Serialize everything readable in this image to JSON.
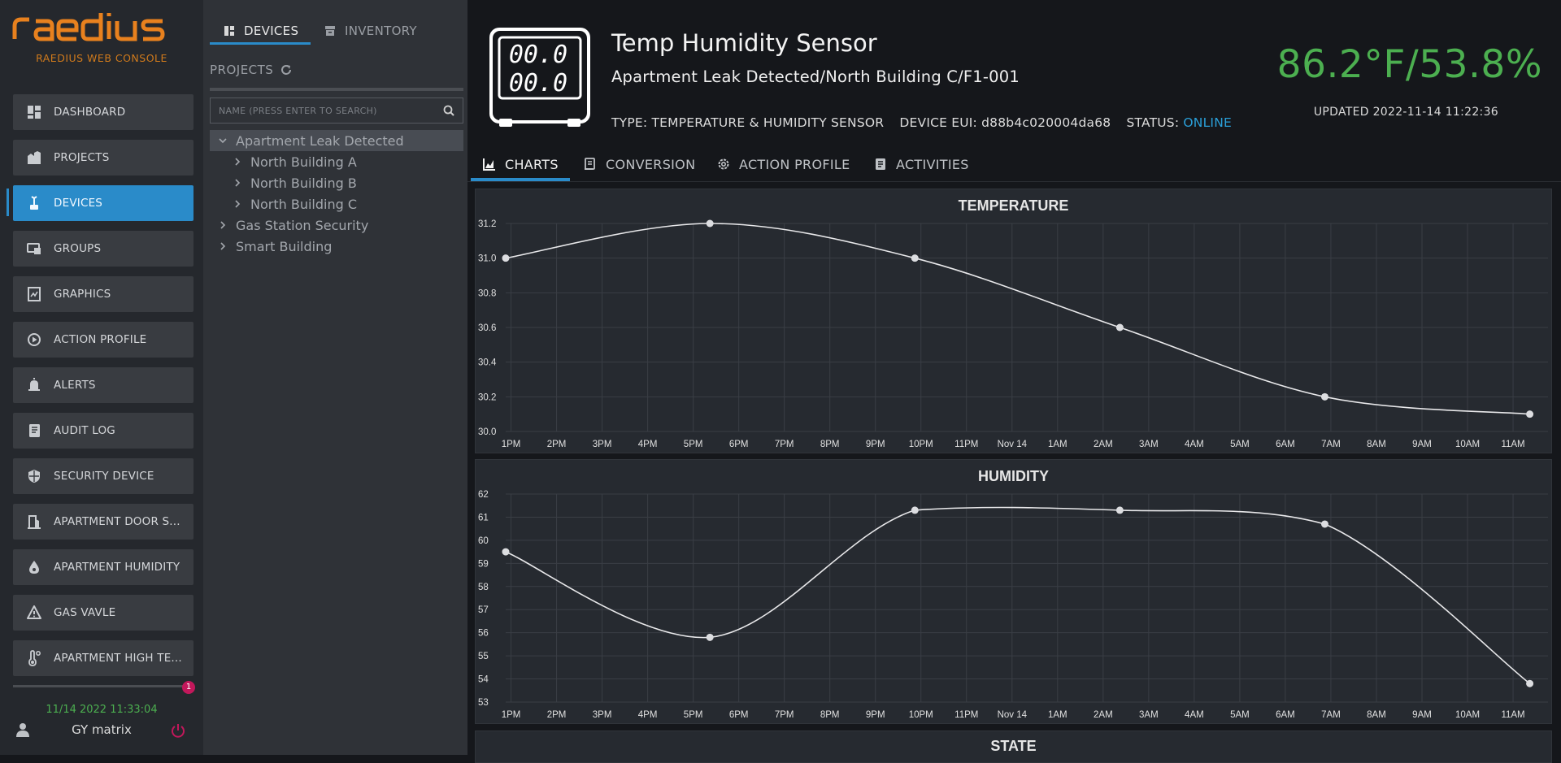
{
  "nav": {
    "logo_text": "raedius",
    "console_label": "RAEDIUS WEB CONSOLE",
    "items": [
      {
        "label": "DASHBOARD",
        "icon": "dashboard-icon"
      },
      {
        "label": "PROJECTS",
        "icon": "projects-icon"
      },
      {
        "label": "DEVICES",
        "icon": "devices-icon",
        "active": true
      },
      {
        "label": "GROUPS",
        "icon": "groups-icon"
      },
      {
        "label": "GRAPHICS",
        "icon": "graphics-icon"
      },
      {
        "label": "ACTION PROFILE",
        "icon": "action-profile-icon"
      },
      {
        "label": "ALERTS",
        "icon": "alerts-icon"
      },
      {
        "label": "AUDIT LOG",
        "icon": "audit-log-icon"
      },
      {
        "label": "SECURITY DEVICE",
        "icon": "shield-icon"
      },
      {
        "label": "APARTMENT DOOR S...",
        "icon": "door-icon"
      },
      {
        "label": "APARTMENT HUMIDITY",
        "icon": "droplet-icon"
      },
      {
        "label": "GAS VAVLE",
        "icon": "warning-icon"
      },
      {
        "label": "APARTMENT HIGH TE...",
        "icon": "thermometer-icon"
      }
    ],
    "time": "11/14 2022 11:33:04",
    "user": "GY matrix",
    "accent": "#2a8bc9",
    "brand_color": "#e8811e"
  },
  "tree_panel": {
    "tab_devices": "DEVICES",
    "tab_inventory": "INVENTORY",
    "projects_label": "PROJECTS",
    "search_placeholder": "NAME (PRESS ENTER TO SEARCH)",
    "nodes": [
      {
        "label": "Apartment Leak Detected",
        "level": 0,
        "expanded": true,
        "selected": true
      },
      {
        "label": "North Building A",
        "level": 1
      },
      {
        "label": "North Building B",
        "level": 1
      },
      {
        "label": "North Building C",
        "level": 1
      },
      {
        "label": "Gas Station Security",
        "level": 0
      },
      {
        "label": "Smart Building",
        "level": 0
      }
    ]
  },
  "device": {
    "display_top": "00.0",
    "display_bottom": "00.0",
    "title": "Temp Humidity Sensor",
    "path": "Apartment Leak Detected/North Building C/F1-001",
    "type_label": "TYPE:",
    "type_value": "TEMPERATURE & HUMIDITY SENSOR",
    "eui_label": "DEVICE EUI:",
    "eui_value": "d88b4c020004da68",
    "status_label": "STATUS:",
    "status_value": "ONLINE",
    "reading": "86.2°F/53.8%",
    "updated": "UPDATED 2022-11-14 11:22:36",
    "status_color": "#2a9fd8",
    "reading_color": "#4caf50"
  },
  "tabs": {
    "charts": "CHARTS",
    "conversion": "CONVERSION",
    "action_profile": "ACTION PROFILE",
    "activities": "ACTIVITIES"
  },
  "chart_data": [
    {
      "type": "line",
      "title": "TEMPERATURE",
      "x_ticks": [
        "1PM",
        "2PM",
        "3PM",
        "4PM",
        "5PM",
        "6PM",
        "7PM",
        "8PM",
        "9PM",
        "10PM",
        "11PM",
        "Nov 14",
        "1AM",
        "2AM",
        "3AM",
        "4AM",
        "5AM",
        "6AM",
        "7AM",
        "8AM",
        "9AM",
        "10AM",
        "11AM"
      ],
      "y_ticks": [
        "31.2",
        "31.0",
        "30.8",
        "30.6",
        "30.4",
        "30.2",
        "30.0"
      ],
      "ylim": [
        30.0,
        31.2
      ],
      "xlim": [
        "2022-11-13 12:53",
        "2022-11-14 11:46"
      ],
      "grid": true,
      "points": [
        {
          "x": "2022-11-13 12:53",
          "y": 31.0
        },
        {
          "x": "2022-11-13 17:22",
          "y": 31.2
        },
        {
          "x": "2022-11-13 21:52",
          "y": 31.0
        },
        {
          "x": "2022-11-14 02:22",
          "y": 30.6
        },
        {
          "x": "2022-11-14 06:52",
          "y": 30.2
        },
        {
          "x": "2022-11-14 11:22",
          "y": 30.1
        }
      ]
    },
    {
      "type": "line",
      "title": "HUMIDITY",
      "x_ticks": [
        "1PM",
        "2PM",
        "3PM",
        "4PM",
        "5PM",
        "6PM",
        "7PM",
        "8PM",
        "9PM",
        "10PM",
        "11PM",
        "Nov 14",
        "1AM",
        "2AM",
        "3AM",
        "4AM",
        "5AM",
        "6AM",
        "7AM",
        "8AM",
        "9AM",
        "10AM",
        "11AM"
      ],
      "y_ticks": [
        "62",
        "61",
        "60",
        "59",
        "58",
        "57",
        "56",
        "55",
        "54",
        "53"
      ],
      "ylim": [
        53,
        62
      ],
      "xlim": [
        "2022-11-13 12:53",
        "2022-11-14 11:46"
      ],
      "grid": true,
      "points": [
        {
          "x": "2022-11-13 12:53",
          "y": 59.5
        },
        {
          "x": "2022-11-13 17:22",
          "y": 55.8
        },
        {
          "x": "2022-11-13 21:52",
          "y": 61.3
        },
        {
          "x": "2022-11-14 02:22",
          "y": 61.3
        },
        {
          "x": "2022-11-14 06:52",
          "y": 60.7
        },
        {
          "x": "2022-11-14 11:22",
          "y": 53.8
        }
      ]
    }
  ],
  "state_chart": {
    "title": "STATE"
  }
}
